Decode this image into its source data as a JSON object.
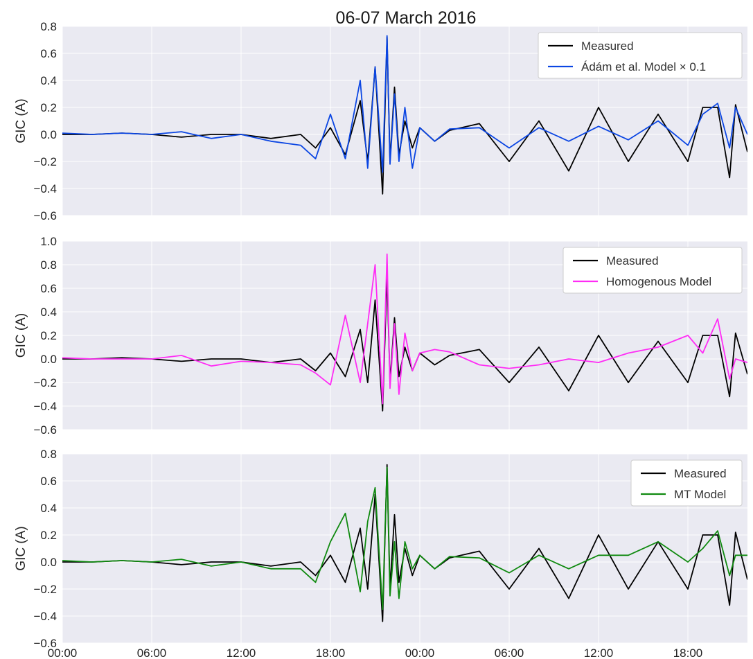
{
  "chart_data": {
    "title": "06-07 March 2016",
    "type": "line",
    "x_tick_labels": [
      "00:00",
      "06:00",
      "12:00",
      "18:00",
      "00:00",
      "06:00",
      "12:00",
      "18:00"
    ],
    "x_tick_hours": [
      0,
      6,
      12,
      18,
      24,
      30,
      36,
      42
    ],
    "x_range_hours": [
      0,
      46
    ],
    "panels": [
      {
        "ylabel": "GIC (A)",
        "ylim": [
          -0.6,
          0.8
        ],
        "yticks": [
          -0.6,
          -0.4,
          -0.2,
          0.0,
          0.2,
          0.4,
          0.6,
          0.8
        ],
        "ytick_labels": [
          "−0.6",
          "−0.4",
          "−0.2",
          "0.0",
          "0.2",
          "0.4",
          "0.6",
          "0.8"
        ],
        "legend_position": "top-right",
        "series": [
          {
            "name": "Measured",
            "color": "#000000",
            "x": [
              0,
              2,
              4,
              6,
              8,
              10,
              12,
              14,
              16,
              17,
              18,
              19,
              20,
              20.5,
              21,
              21.5,
              21.8,
              22,
              22.3,
              22.6,
              23,
              23.5,
              24,
              25,
              26,
              28,
              30,
              32,
              34,
              36,
              38,
              40,
              42,
              43,
              44,
              44.8,
              45.2,
              46
            ],
            "y": [
              0.0,
              0.0,
              0.01,
              0.0,
              -0.02,
              0.0,
              0.0,
              -0.03,
              0.0,
              -0.1,
              0.05,
              -0.15,
              0.25,
              -0.2,
              0.5,
              -0.44,
              0.72,
              -0.2,
              0.35,
              -0.15,
              0.1,
              -0.1,
              0.05,
              -0.05,
              0.03,
              0.08,
              -0.2,
              0.1,
              -0.27,
              0.2,
              -0.2,
              0.15,
              -0.2,
              0.2,
              0.2,
              -0.32,
              0.22,
              -0.13
            ]
          },
          {
            "name": "Ádám et al. Model × 0.1",
            "color": "#0b46e3",
            "x": [
              0,
              2,
              4,
              6,
              8,
              10,
              12,
              14,
              16,
              17,
              18,
              19,
              20,
              20.5,
              21,
              21.5,
              21.8,
              22,
              22.3,
              22.6,
              23,
              23.5,
              24,
              25,
              26,
              28,
              30,
              32,
              34,
              36,
              38,
              40,
              42,
              43,
              44,
              44.8,
              45.2,
              46
            ],
            "y": [
              0.01,
              0.0,
              0.01,
              0.0,
              0.02,
              -0.03,
              0.0,
              -0.05,
              -0.08,
              -0.18,
              0.15,
              -0.18,
              0.4,
              -0.25,
              0.5,
              -0.28,
              0.73,
              -0.22,
              0.3,
              -0.2,
              0.2,
              -0.25,
              0.05,
              -0.05,
              0.04,
              0.05,
              -0.1,
              0.05,
              -0.05,
              0.06,
              -0.04,
              0.1,
              -0.08,
              0.15,
              0.23,
              -0.1,
              0.2,
              0.0
            ]
          }
        ]
      },
      {
        "ylabel": "GIC (A)",
        "ylim": [
          -0.6,
          1.0
        ],
        "yticks": [
          -0.6,
          -0.4,
          -0.2,
          0.0,
          0.2,
          0.4,
          0.6,
          0.8,
          1.0
        ],
        "ytick_labels": [
          "−0.6",
          "−0.4",
          "−0.2",
          "0.0",
          "0.2",
          "0.4",
          "0.6",
          "0.8",
          "1.0"
        ],
        "legend_position": "top-right",
        "series": [
          {
            "name": "Measured",
            "color": "#000000",
            "x": [
              0,
              2,
              4,
              6,
              8,
              10,
              12,
              14,
              16,
              17,
              18,
              19,
              20,
              20.5,
              21,
              21.5,
              21.8,
              22,
              22.3,
              22.6,
              23,
              23.5,
              24,
              25,
              26,
              28,
              30,
              32,
              34,
              36,
              38,
              40,
              42,
              43,
              44,
              44.8,
              45.2,
              46
            ],
            "y": [
              0.0,
              0.0,
              0.01,
              0.0,
              -0.02,
              0.0,
              0.0,
              -0.03,
              0.0,
              -0.1,
              0.05,
              -0.15,
              0.25,
              -0.2,
              0.5,
              -0.44,
              0.72,
              -0.2,
              0.35,
              -0.15,
              0.1,
              -0.1,
              0.05,
              -0.05,
              0.03,
              0.08,
              -0.2,
              0.1,
              -0.27,
              0.2,
              -0.2,
              0.15,
              -0.2,
              0.2,
              0.2,
              -0.32,
              0.22,
              -0.13
            ]
          },
          {
            "name": "Homogenous Model",
            "color": "#ff2cf5",
            "x": [
              0,
              2,
              4,
              6,
              8,
              10,
              12,
              14,
              16,
              17,
              18,
              19,
              20,
              20.5,
              21,
              21.5,
              21.8,
              22,
              22.3,
              22.6,
              23,
              23.5,
              24,
              25,
              26,
              28,
              30,
              32,
              34,
              36,
              38,
              40,
              42,
              43,
              44,
              44.8,
              45.2,
              46
            ],
            "y": [
              0.01,
              0.0,
              0.0,
              0.0,
              0.03,
              -0.06,
              -0.02,
              -0.03,
              -0.05,
              -0.12,
              -0.22,
              0.37,
              -0.2,
              0.3,
              0.8,
              -0.38,
              0.89,
              -0.25,
              0.3,
              -0.3,
              0.22,
              -0.1,
              0.05,
              0.08,
              0.06,
              -0.05,
              -0.08,
              -0.05,
              0.0,
              -0.03,
              0.05,
              0.1,
              0.2,
              0.05,
              0.34,
              -0.17,
              0.0,
              -0.03
            ]
          }
        ]
      },
      {
        "ylabel": "GIC (A)",
        "ylim": [
          -0.6,
          0.8
        ],
        "yticks": [
          -0.6,
          -0.4,
          -0.2,
          0.0,
          0.2,
          0.4,
          0.6,
          0.8
        ],
        "ytick_labels": [
          "−0.6",
          "−0.4",
          "−0.2",
          "0.0",
          "0.2",
          "0.4",
          "0.6",
          "0.8"
        ],
        "legend_position": "top-right",
        "series": [
          {
            "name": "Measured",
            "color": "#000000",
            "x": [
              0,
              2,
              4,
              6,
              8,
              10,
              12,
              14,
              16,
              17,
              18,
              19,
              20,
              20.5,
              21,
              21.5,
              21.8,
              22,
              22.3,
              22.6,
              23,
              23.5,
              24,
              25,
              26,
              28,
              30,
              32,
              34,
              36,
              38,
              40,
              42,
              43,
              44,
              44.8,
              45.2,
              46
            ],
            "y": [
              0.0,
              0.0,
              0.01,
              0.0,
              -0.02,
              0.0,
              0.0,
              -0.03,
              0.0,
              -0.1,
              0.05,
              -0.15,
              0.25,
              -0.2,
              0.5,
              -0.44,
              0.72,
              -0.2,
              0.35,
              -0.15,
              0.1,
              -0.1,
              0.05,
              -0.05,
              0.03,
              0.08,
              -0.2,
              0.1,
              -0.27,
              0.2,
              -0.2,
              0.15,
              -0.2,
              0.2,
              0.2,
              -0.32,
              0.22,
              -0.13
            ]
          },
          {
            "name": "MT Model",
            "color": "#108a10",
            "x": [
              0,
              2,
              4,
              6,
              8,
              10,
              12,
              14,
              16,
              17,
              18,
              19,
              20,
              20.5,
              21,
              21.5,
              21.8,
              22,
              22.3,
              22.6,
              23,
              23.5,
              24,
              25,
              26,
              28,
              30,
              32,
              34,
              36,
              38,
              40,
              42,
              43,
              44,
              44.8,
              45.2,
              46
            ],
            "y": [
              0.01,
              0.0,
              0.01,
              0.0,
              0.02,
              -0.03,
              0.0,
              -0.05,
              -0.05,
              -0.15,
              0.15,
              0.36,
              -0.22,
              0.3,
              0.55,
              -0.35,
              0.7,
              -0.25,
              0.15,
              -0.27,
              0.15,
              -0.05,
              0.05,
              -0.05,
              0.04,
              0.03,
              -0.08,
              0.05,
              -0.05,
              0.05,
              0.05,
              0.15,
              0.0,
              0.1,
              0.23,
              -0.1,
              0.05,
              0.05
            ]
          }
        ]
      }
    ]
  }
}
